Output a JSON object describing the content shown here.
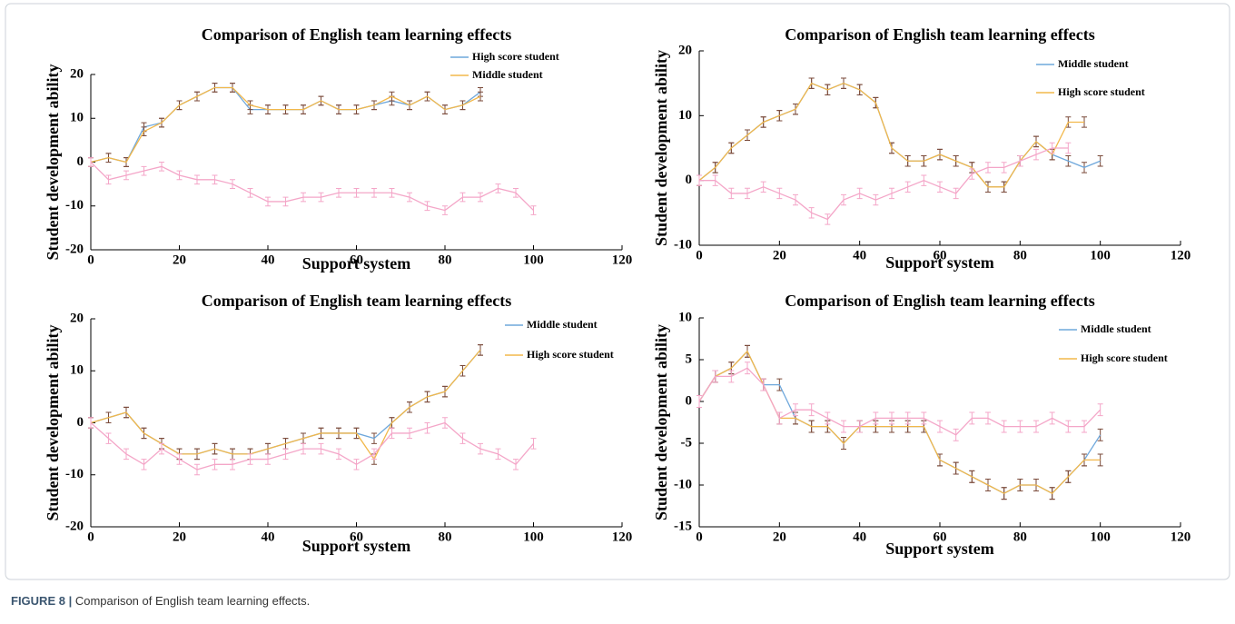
{
  "chart_data": [
    {
      "type": "line",
      "title": "Comparison of English team learning effects",
      "xlabel": "Support system",
      "ylabel": "Student development ability",
      "x": [
        0,
        4,
        8,
        12,
        16,
        20,
        24,
        28,
        32,
        36,
        40,
        44,
        48,
        52,
        56,
        60,
        64,
        68,
        72,
        76,
        80,
        84,
        88,
        92,
        96,
        100
      ],
      "xlim": [
        0,
        120
      ],
      "xticks": [
        0,
        20,
        40,
        60,
        80,
        100,
        120
      ],
      "ylim": [
        -20,
        20
      ],
      "yticks": [
        -20,
        -10,
        0,
        10,
        20
      ],
      "series": [
        {
          "name": "High score student",
          "color": "#6fa8dc",
          "error_color": "#7a4a3a",
          "error": 1,
          "values": [
            0,
            1,
            0,
            8,
            9,
            13,
            15,
            17,
            17,
            12,
            12,
            12,
            12,
            14,
            12,
            12,
            13,
            14,
            13,
            15,
            12,
            13,
            16,
            null,
            null,
            null
          ]
        },
        {
          "name": "Middle student",
          "color": "#f2b84b",
          "error_color": "#7a4a3a",
          "error": 1,
          "values": [
            0,
            1,
            0,
            7,
            9,
            13,
            15,
            17,
            17,
            13,
            12,
            12,
            12,
            14,
            12,
            12,
            13,
            15,
            13,
            15,
            12,
            13,
            15,
            null,
            null,
            null
          ]
        },
        {
          "color": "#f4a6c8",
          "error_color": "#f4a6c8",
          "error": 1,
          "values": [
            0,
            -4,
            -3,
            -2,
            -1,
            -3,
            -4,
            -4,
            -5,
            -7,
            -9,
            -9,
            -8,
            -8,
            -7,
            -7,
            -7,
            -7,
            -8,
            -10,
            -11,
            -8,
            -8,
            -6,
            -7,
            -11
          ]
        }
      ]
    },
    {
      "type": "line",
      "title": "Comparison of English team learning effects",
      "xlabel": "Support system",
      "ylabel": "Student development ability",
      "x": [
        0,
        4,
        8,
        12,
        16,
        20,
        24,
        28,
        32,
        36,
        40,
        44,
        48,
        52,
        56,
        60,
        64,
        68,
        72,
        76,
        80,
        84,
        88,
        92,
        96,
        100
      ],
      "xlim": [
        0,
        120
      ],
      "xticks": [
        0,
        20,
        40,
        60,
        80,
        100,
        120
      ],
      "ylim": [
        -10,
        20
      ],
      "yticks": [
        -10,
        0,
        10,
        20
      ],
      "series": [
        {
          "name": "Middle student",
          "color": "#6fa8dc",
          "error_color": "#7a4a3a",
          "error": 0.8,
          "values": [
            0,
            2,
            5,
            7,
            9,
            10,
            11,
            15,
            14,
            15,
            14,
            12,
            5,
            3,
            3,
            4,
            3,
            2,
            -1,
            -1,
            3,
            6,
            4,
            3,
            2,
            3
          ]
        },
        {
          "name": "High score student",
          "color": "#f2b84b",
          "error_color": "#7a4a3a",
          "error": 0.8,
          "values": [
            0,
            2,
            5,
            7,
            9,
            10,
            11,
            15,
            14,
            15,
            14,
            12,
            5,
            3,
            3,
            4,
            3,
            2,
            -1,
            -1,
            3,
            6,
            4,
            9,
            9,
            null
          ]
        },
        {
          "color": "#f4a6c8",
          "error_color": "#f4a6c8",
          "error": 0.8,
          "values": [
            0,
            0,
            -2,
            -2,
            -1,
            -2,
            -3,
            -5,
            -6,
            -3,
            -2,
            -3,
            -2,
            -1,
            0,
            -1,
            -2,
            1,
            2,
            2,
            3,
            4,
            5,
            5,
            null,
            null
          ]
        }
      ]
    },
    {
      "type": "line",
      "title": "Comparison of English team learning effects",
      "xlabel": "Support system",
      "ylabel": "Student development ability",
      "x": [
        0,
        4,
        8,
        12,
        16,
        20,
        24,
        28,
        32,
        36,
        40,
        44,
        48,
        52,
        56,
        60,
        64,
        68,
        72,
        76,
        80,
        84,
        88,
        92,
        96,
        100
      ],
      "xlim": [
        0,
        120
      ],
      "xticks": [
        0,
        20,
        40,
        60,
        80,
        100,
        120
      ],
      "ylim": [
        -20,
        20
      ],
      "yticks": [
        -20,
        -10,
        0,
        10,
        20
      ],
      "series": [
        {
          "name": "Middle student",
          "color": "#6fa8dc",
          "error_color": "#7a4a3a",
          "error": 1,
          "values": [
            0,
            1,
            2,
            -2,
            -4,
            -6,
            -6,
            -5,
            -6,
            -6,
            -5,
            -4,
            -3,
            -2,
            -2,
            -2,
            -3,
            0,
            3,
            5,
            6,
            10,
            14,
            null,
            null,
            null
          ]
        },
        {
          "name": "High score student",
          "color": "#f2b84b",
          "error_color": "#7a4a3a",
          "error": 1,
          "values": [
            0,
            1,
            2,
            -2,
            -4,
            -6,
            -6,
            -5,
            -6,
            -6,
            -5,
            -4,
            -3,
            -2,
            -2,
            -2,
            -7,
            0,
            3,
            5,
            6,
            10,
            14,
            null,
            null,
            null
          ]
        },
        {
          "color": "#f4a6c8",
          "error_color": "#f4a6c8",
          "error": 1,
          "values": [
            0,
            -3,
            -6,
            -8,
            -5,
            -7,
            -9,
            -8,
            -8,
            -7,
            -7,
            -6,
            -5,
            -5,
            -6,
            -8,
            -6,
            -2,
            -2,
            -1,
            0,
            -3,
            -5,
            -6,
            -8,
            -4
          ]
        }
      ]
    },
    {
      "type": "line",
      "title": "Comparison of English team learning effects",
      "xlabel": "Support system",
      "ylabel": "Student development ability",
      "x": [
        0,
        4,
        8,
        12,
        16,
        20,
        24,
        28,
        32,
        36,
        40,
        44,
        48,
        52,
        56,
        60,
        64,
        68,
        72,
        76,
        80,
        84,
        88,
        92,
        96,
        100
      ],
      "xlim": [
        0,
        120
      ],
      "xticks": [
        0,
        20,
        40,
        60,
        80,
        100,
        120
      ],
      "ylim": [
        -15,
        10
      ],
      "yticks": [
        -15,
        -10,
        -5,
        0,
        5,
        10
      ],
      "series": [
        {
          "name": "Middle student",
          "color": "#6fa8dc",
          "error_color": "#7a4a3a",
          "error": 0.7,
          "values": [
            0,
            3,
            4,
            6,
            2,
            2,
            -2,
            -3,
            -3,
            -5,
            -3,
            -3,
            -3,
            -3,
            -3,
            -7,
            -8,
            -9,
            -10,
            -11,
            -10,
            -10,
            -11,
            -9,
            -7,
            -4
          ]
        },
        {
          "name": "High score student",
          "color": "#f2b84b",
          "error_color": "#7a4a3a",
          "error": 0.7,
          "values": [
            0,
            3,
            4,
            6,
            2,
            -2,
            -2,
            -3,
            -3,
            -5,
            -3,
            -3,
            -3,
            -3,
            -3,
            -7,
            -8,
            -9,
            -10,
            -11,
            -10,
            -10,
            -11,
            -9,
            -7,
            -7
          ]
        },
        {
          "color": "#f4a6c8",
          "error_color": "#f4a6c8",
          "error": 0.7,
          "values": [
            0,
            3,
            3,
            4,
            2,
            -2,
            -1,
            -1,
            -2,
            -3,
            -3,
            -2,
            -2,
            -2,
            -2,
            -3,
            -4,
            -2,
            -2,
            -3,
            -3,
            -3,
            -2,
            -3,
            -3,
            -1
          ]
        }
      ]
    }
  ],
  "caption": {
    "label": "FIGURE 8 |",
    "text": "Comparison of English team learning effects."
  }
}
